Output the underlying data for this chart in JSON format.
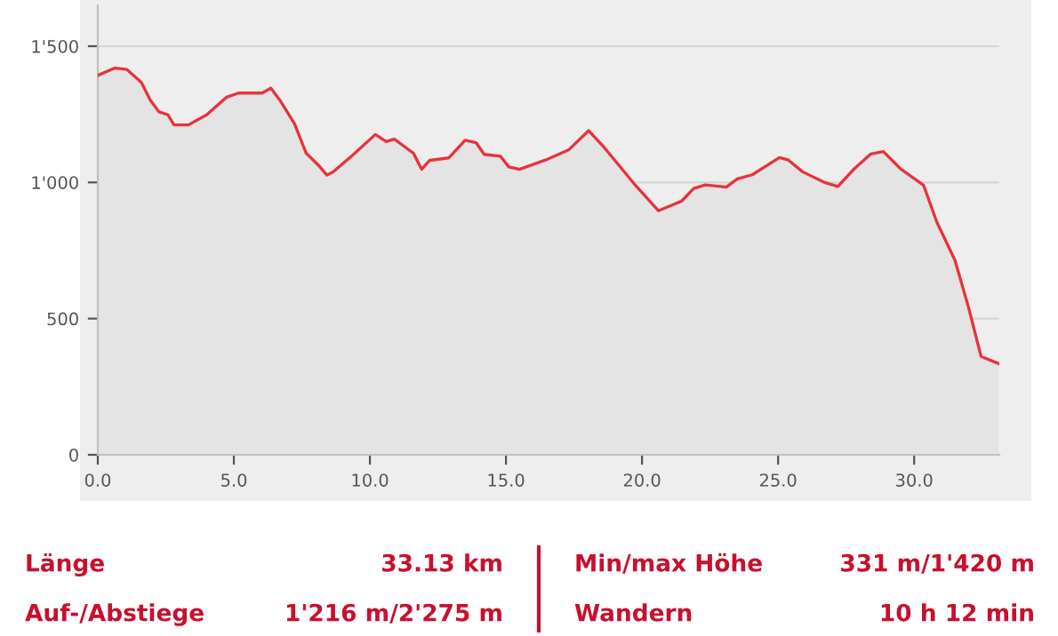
{
  "chart_data": {
    "type": "area",
    "color": "#e8333d",
    "x": [
      0,
      0.63,
      1.06,
      1.6,
      1.93,
      2.25,
      2.58,
      2.8,
      3.33,
      4.0,
      4.74,
      5.17,
      6.04,
      6.36,
      6.69,
      7.23,
      7.66,
      8.1,
      8.42,
      8.64,
      9.4,
      10.2,
      10.6,
      10.9,
      11.6,
      11.9,
      12.2,
      12.9,
      13.5,
      13.9,
      14.2,
      14.8,
      15.1,
      15.5,
      16.45,
      17.3,
      18.04,
      18.63,
      19.7,
      20.6,
      21.45,
      21.9,
      22.33,
      23.1,
      23.5,
      24.05,
      25.05,
      25.38,
      25.9,
      26.7,
      27.2,
      27.8,
      28.4,
      28.87,
      29.5,
      30.35,
      30.83,
      31.5,
      32.0,
      32.46,
      33.1
    ],
    "values": [
      1393,
      1420,
      1415,
      1367,
      1302,
      1259,
      1248,
      1211,
      1211,
      1248,
      1313,
      1328,
      1328,
      1346,
      1302,
      1215,
      1107,
      1064,
      1027,
      1038,
      1103,
      1176,
      1150,
      1159,
      1107,
      1048,
      1081,
      1090,
      1155,
      1146,
      1103,
      1096,
      1057,
      1048,
      1082,
      1119,
      1190,
      1126,
      996,
      896,
      931,
      978,
      991,
      983,
      1013,
      1028,
      1091,
      1082,
      1039,
      1000,
      985,
      1050,
      1104,
      1113,
      1050,
      989,
      855,
      714,
      541,
      361,
      335
    ],
    "xlim": [
      0,
      33.13
    ],
    "ylim": [
      0,
      1650
    ],
    "xticks": [
      {
        "value": 0,
        "label": "0.0"
      },
      {
        "value": 5,
        "label": "5.0"
      },
      {
        "value": 10,
        "label": "10.0"
      },
      {
        "value": 15,
        "label": "15.0"
      },
      {
        "value": 20,
        "label": "20.0"
      },
      {
        "value": 25,
        "label": "25.0"
      },
      {
        "value": 30,
        "label": "30.0"
      }
    ],
    "yticks": [
      0,
      500,
      {
        "value": 1000,
        "label": "1'000"
      },
      {
        "value": 1500,
        "label": "1'500"
      }
    ],
    "grid": "y",
    "annotations": [
      "Länge",
      "33.13 km",
      "Min/max Höhe",
      "331 m/1'420 m",
      "Auf-/Abstiege",
      "1'216 m/2'275 m",
      "Wandern",
      "10 h 12 min"
    ]
  }
}
